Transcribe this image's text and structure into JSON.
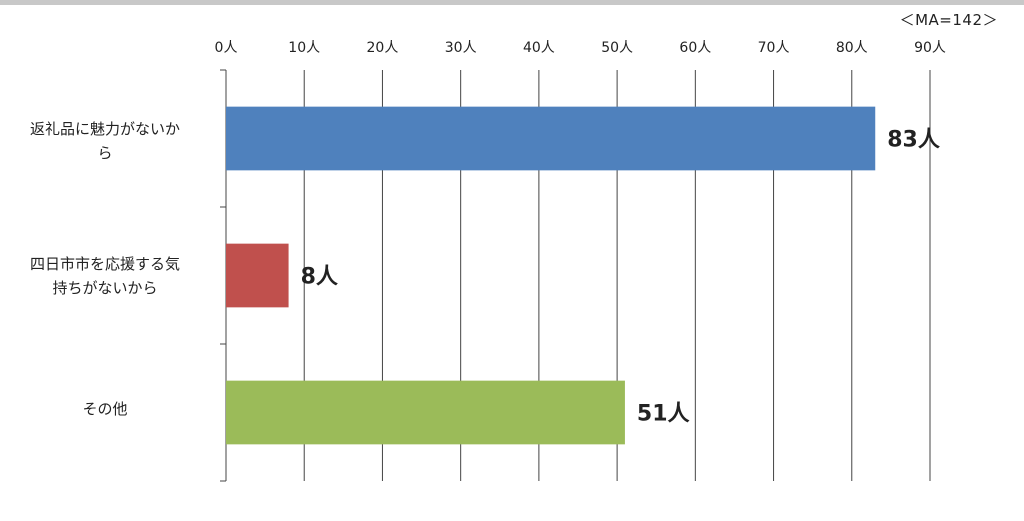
{
  "note": "＜MA=142＞",
  "chart_data": {
    "type": "bar",
    "orientation": "horizontal",
    "title": "",
    "xlabel": "",
    "ylabel": "",
    "unit": "人",
    "categories": [
      "返礼品に魅力がないから",
      "四日市市を応援する気持ちがないから",
      "その他"
    ],
    "category_labels": [
      "返礼品に魅力がないか\nら",
      "四日市市を応援する気\n持ちがないから",
      "その他"
    ],
    "values": [
      83,
      8,
      51
    ],
    "value_labels": [
      "83人",
      "8人",
      "51人"
    ],
    "colors": [
      "#4f81bd",
      "#c0504d",
      "#9bbb59"
    ],
    "xlim": [
      0,
      90
    ],
    "ticks": [
      0,
      10,
      20,
      30,
      40,
      50,
      60,
      70,
      80,
      90
    ],
    "tick_labels": [
      "0人",
      "10人",
      "20人",
      "30人",
      "40人",
      "50人",
      "60人",
      "70人",
      "80人",
      "90人"
    ],
    "grid": true,
    "legend": "none"
  }
}
